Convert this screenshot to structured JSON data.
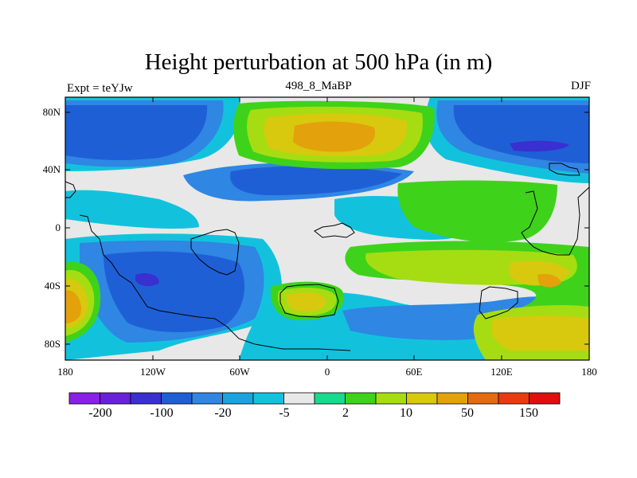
{
  "header": {
    "title": "Height perturbation at 500 hPa (in m)",
    "left_label": "Expt = teYJw",
    "center_label": "498_8_MaBP",
    "right_label": "DJF"
  },
  "axes": {
    "y_ticks": [
      "80N",
      "40N",
      "0",
      "40S",
      "80S"
    ],
    "x_ticks": [
      "180",
      "120W",
      "60W",
      "0",
      "60E",
      "120E",
      "180"
    ]
  },
  "colorbar": {
    "colors": [
      "#8a1fe6",
      "#6a20d8",
      "#3a2fd0",
      "#1f5fd6",
      "#2f86e3",
      "#1aa3e0",
      "#12c2dd",
      "#e8e8e8",
      "#18d98c",
      "#3fd21a",
      "#a6dd12",
      "#d8c80e",
      "#e3a10c",
      "#e56a10",
      "#e83c10",
      "#de0f0f"
    ],
    "labels": [
      "-200",
      "-100",
      "-20",
      "-5",
      "2",
      "10",
      "50",
      "150"
    ]
  },
  "map_colors": {
    "neutral": "#e8e8e8",
    "cyan": "#12c2dd",
    "light_blue": "#2f86e3",
    "blue": "#1f5fd6",
    "dark_blue": "#3a2fd0",
    "green": "#3fd21a",
    "yellow_green": "#a6dd12",
    "yellow": "#d8c80e",
    "orange": "#e3a10c"
  }
}
